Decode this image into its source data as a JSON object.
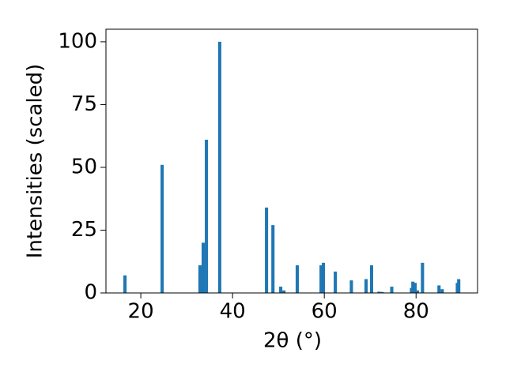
{
  "chart_data": {
    "type": "bar",
    "xlabel": "2θ (°)",
    "ylabel": "Intensities (scaled)",
    "x": [
      16.55,
      24.65,
      32.9,
      33.6,
      34.3,
      37.2,
      47.4,
      48.8,
      50.5,
      51.2,
      54.1,
      59.3,
      59.8,
      62.4,
      65.9,
      69.1,
      70.3,
      71.9,
      72.6,
      74.7,
      79.0,
      79.3,
      79.8,
      80.3,
      81.4,
      85.0,
      85.7,
      89.0,
      89.3
    ],
    "values": [
      7,
      51,
      11,
      20,
      61,
      100,
      34,
      27,
      2.5,
      1,
      11,
      11,
      12,
      8.5,
      5,
      5.5,
      11,
      0.5,
      0.4,
      2.5,
      2,
      4.5,
      4,
      1,
      12,
      3,
      1.5,
      4,
      5.5
    ],
    "color": "#1f77b4",
    "xlim": [
      12.4,
      93.4
    ],
    "ylim": [
      0,
      105
    ],
    "xticks": [
      20,
      40,
      60,
      80
    ],
    "yticks": [
      0,
      25,
      50,
      75,
      100
    ]
  }
}
